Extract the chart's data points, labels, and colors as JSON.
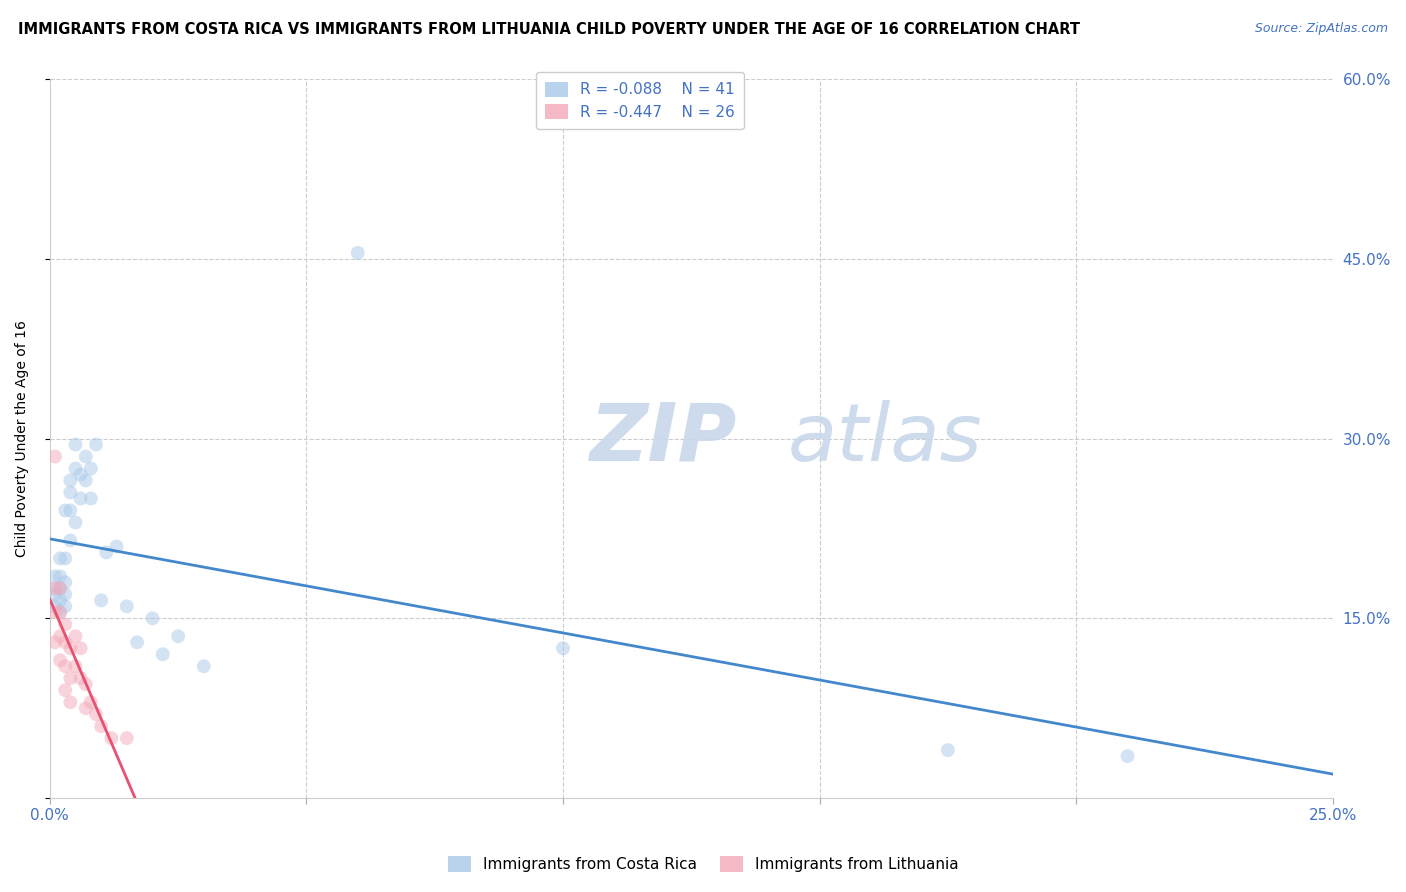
{
  "title": "IMMIGRANTS FROM COSTA RICA VS IMMIGRANTS FROM LITHUANIA CHILD POVERTY UNDER THE AGE OF 16 CORRELATION CHART",
  "source": "Source: ZipAtlas.com",
  "ylabel": "Child Poverty Under the Age of 16",
  "xlim": [
    0.0,
    0.25
  ],
  "ylim": [
    0.0,
    0.6
  ],
  "costa_rica_color": "#a8c8e8",
  "lithuania_color": "#f4a8b8",
  "trend_costa_rica_color": "#4488cc",
  "trend_lithuania_color": "#e85070",
  "watermark_zip": "ZIP",
  "watermark_atlas": "atlas",
  "watermark_color": "#c8d8ec",
  "legend_r_costa_rica": "R = -0.088",
  "legend_n_costa_rica": "N = 41",
  "legend_r_lithuania": "R = -0.447",
  "legend_n_lithuania": "N = 26",
  "costa_rica_x": [
    0.001,
    0.001,
    0.001,
    0.001,
    0.002,
    0.002,
    0.002,
    0.002,
    0.002,
    0.003,
    0.003,
    0.003,
    0.003,
    0.003,
    0.004,
    0.004,
    0.004,
    0.004,
    0.005,
    0.005,
    0.005,
    0.006,
    0.006,
    0.007,
    0.007,
    0.008,
    0.008,
    0.009,
    0.01,
    0.011,
    0.013,
    0.015,
    0.017,
    0.02,
    0.022,
    0.025,
    0.03,
    0.06,
    0.1,
    0.175,
    0.21
  ],
  "costa_rica_y": [
    0.185,
    0.175,
    0.17,
    0.16,
    0.2,
    0.185,
    0.175,
    0.165,
    0.155,
    0.24,
    0.2,
    0.18,
    0.17,
    0.16,
    0.265,
    0.255,
    0.24,
    0.215,
    0.295,
    0.275,
    0.23,
    0.27,
    0.25,
    0.285,
    0.265,
    0.275,
    0.25,
    0.295,
    0.165,
    0.205,
    0.21,
    0.16,
    0.13,
    0.15,
    0.12,
    0.135,
    0.11,
    0.455,
    0.125,
    0.04,
    0.035
  ],
  "lithuania_x": [
    0.001,
    0.001,
    0.001,
    0.001,
    0.002,
    0.002,
    0.002,
    0.002,
    0.003,
    0.003,
    0.003,
    0.003,
    0.004,
    0.004,
    0.004,
    0.005,
    0.005,
    0.006,
    0.006,
    0.007,
    0.007,
    0.008,
    0.009,
    0.01,
    0.012,
    0.015
  ],
  "lithuania_y": [
    0.285,
    0.175,
    0.155,
    0.13,
    0.175,
    0.155,
    0.135,
    0.115,
    0.145,
    0.13,
    0.11,
    0.09,
    0.125,
    0.1,
    0.08,
    0.135,
    0.11,
    0.125,
    0.1,
    0.095,
    0.075,
    0.08,
    0.07,
    0.06,
    0.05,
    0.05
  ],
  "marker_size": 100,
  "alpha": 0.5,
  "title_fontsize": 10.5,
  "label_fontsize": 10,
  "tick_fontsize": 11,
  "legend_fontsize": 11,
  "source_fontsize": 9,
  "figsize": [
    14.06,
    8.92
  ],
  "dpi": 100
}
